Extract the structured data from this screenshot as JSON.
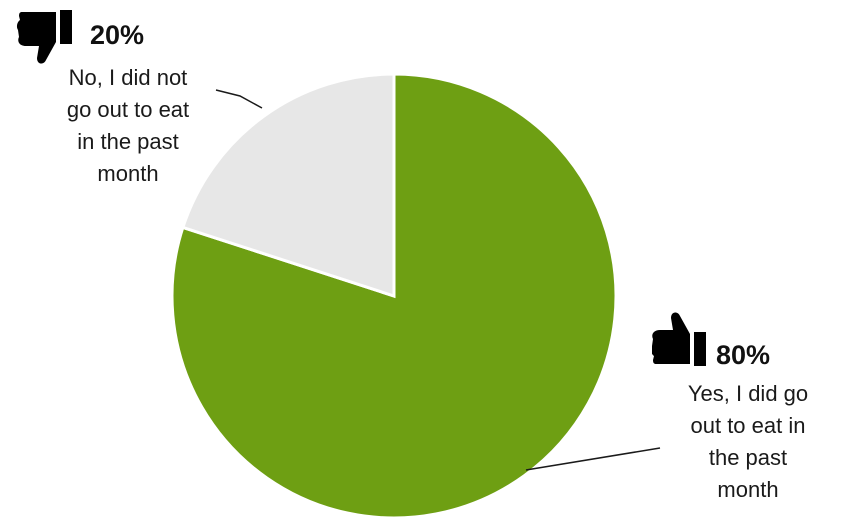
{
  "chart_data": {
    "type": "pie",
    "title": "",
    "slices": [
      {
        "label": "No, I did not go out to eat in the past month",
        "value": 20,
        "value_label": "20%",
        "color": "#e7e7e7",
        "icon": "thumbs-down-icon"
      },
      {
        "label": "Yes, I  did go out to eat in the past month",
        "value": 80,
        "value_label": "80%",
        "color": "#6e9f13",
        "icon": "thumbs-up-icon"
      }
    ],
    "start_angle_deg": 0,
    "direction": "clockwise-from-top-starting-with-largest",
    "legend": "none",
    "data_labels": "outside-with-leader-lines"
  },
  "labels": {
    "no_pct": "20%",
    "no_lines": [
      "No, I did not",
      "go out to eat",
      "in the past",
      "month"
    ],
    "yes_pct": "80%",
    "yes_lines": [
      "Yes, I  did go",
      "out to eat in",
      "the past",
      "month"
    ]
  }
}
